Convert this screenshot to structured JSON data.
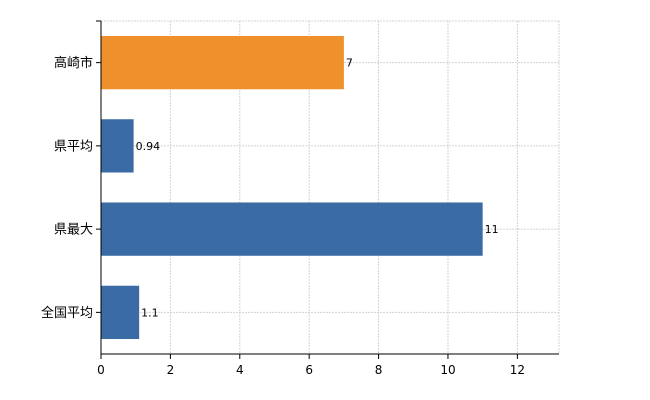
{
  "chart_data": {
    "type": "bar",
    "orientation": "horizontal",
    "categories": [
      "高崎市",
      "県平均",
      "県最大",
      "全国平均"
    ],
    "values": [
      7,
      0.94,
      11,
      1.1
    ],
    "value_labels": [
      "7",
      "0.94",
      "11",
      "1.1"
    ],
    "colors": [
      "#f0902c",
      "#3b6ba5",
      "#3b6ba5",
      "#3b6ba5"
    ],
    "xlim": [
      0,
      13.2
    ],
    "xticks": [
      0,
      2,
      4,
      6,
      8,
      10,
      12
    ],
    "grid": true,
    "legend": "none",
    "title": "",
    "xlabel": "",
    "ylabel": ""
  }
}
